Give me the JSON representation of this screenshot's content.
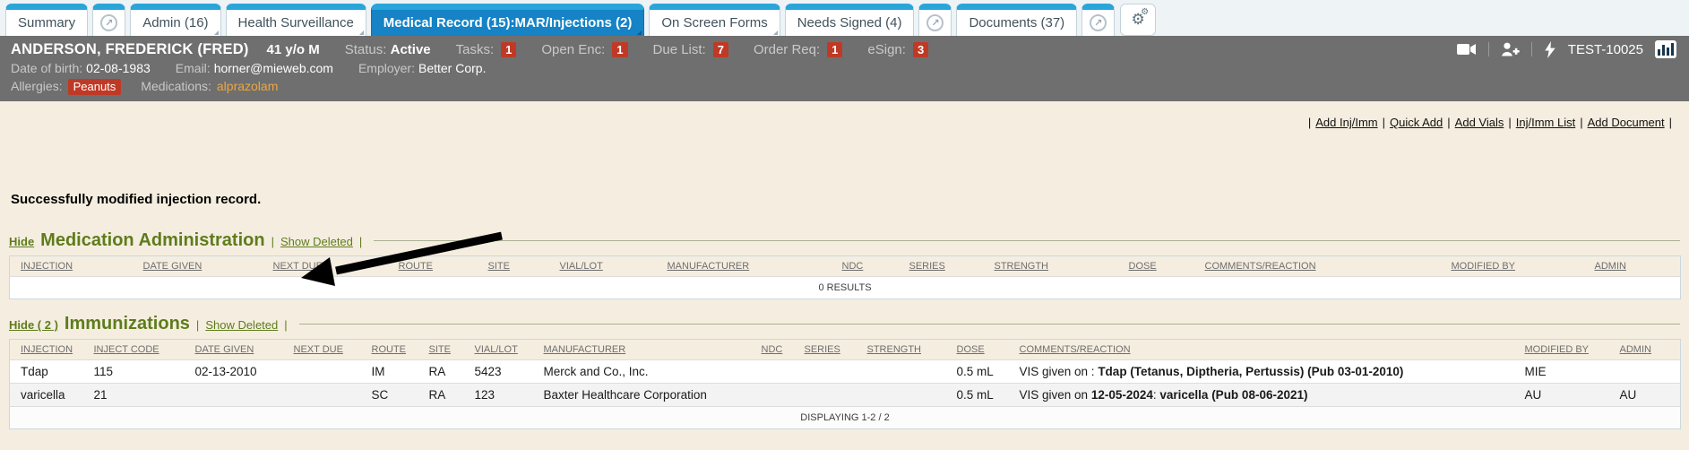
{
  "colors": {
    "accent_blue": "#1583c5",
    "tab_strip_blue": "#2aa5da",
    "alert_red": "#bf3a26",
    "section_green": "#5e7c1c",
    "medications_orange": "#eda63f",
    "banner_gray": "#6f6f6f",
    "content_beige": "#f5eee0"
  },
  "tabs": {
    "popout_glyph": "↗",
    "gear_glyph": "⚙",
    "items": [
      {
        "label": "Summary",
        "active": false,
        "fold": false,
        "popout": true
      },
      {
        "label": "Admin (16)",
        "active": false,
        "fold": true,
        "popout": false
      },
      {
        "label": "Health Surveillance",
        "active": false,
        "fold": true,
        "popout": false
      },
      {
        "label": "Medical Record (15):MAR/Injections (2)",
        "active": true,
        "fold": true,
        "popout": false
      },
      {
        "label": "On Screen Forms",
        "active": false,
        "fold": true,
        "popout": false
      },
      {
        "label": "Needs Signed (4)",
        "active": false,
        "fold": false,
        "popout": true
      },
      {
        "label": "Documents (37)",
        "active": false,
        "fold": false,
        "popout": true
      }
    ]
  },
  "patient": {
    "name": "ANDERSON, FREDERICK (FRED)",
    "age_sex": "41 y/o M",
    "status_label": "Status:",
    "status_value": "Active",
    "counters": [
      {
        "label": "Tasks:",
        "value": "1"
      },
      {
        "label": "Open Enc:",
        "value": "1"
      },
      {
        "label": "Due List:",
        "value": "7"
      },
      {
        "label": "Order Req:",
        "value": "1"
      },
      {
        "label": "eSign:",
        "value": "3"
      }
    ],
    "record_id": "TEST-10025",
    "details": [
      {
        "label": "Date of birth:",
        "value": "02-08-1983"
      },
      {
        "label": "Email:",
        "value": "horner@mieweb.com"
      },
      {
        "label": "Employer:",
        "value": "Better Corp."
      }
    ],
    "allergies_label": "Allergies:",
    "allergies": "Peanuts",
    "medications_label": "Medications:",
    "medications": "alprazolam"
  },
  "actions": {
    "separator": "|",
    "links": [
      "Add Inj/Imm",
      "Quick Add",
      "Add Vials",
      "Inj/Imm List",
      "Add Document"
    ]
  },
  "message": {
    "text": "Successfully modified injection record."
  },
  "med_admin": {
    "hide_label": "Hide",
    "title": "Medication Administration",
    "sep": "|",
    "show_deleted_label": "Show Deleted",
    "columns": [
      "INJECTION",
      "DATE GIVEN",
      "NEXT DUE",
      "ROUTE",
      "SITE",
      "VIAL/LOT",
      "MANUFACTURER",
      "NDC",
      "SERIES",
      "STRENGTH",
      "DOSE",
      "COMMENTS/REACTION",
      "MODIFIED BY",
      "ADMIN"
    ],
    "empty_text": "0 RESULTS"
  },
  "immunizations": {
    "hide_label": "Hide ( 2 )",
    "title": "Immunizations",
    "sep": "|",
    "show_deleted_label": "Show Deleted",
    "columns": [
      "INJECTION",
      "INJECT CODE",
      "DATE GIVEN",
      "NEXT DUE",
      "ROUTE",
      "SITE",
      "VIAL/LOT",
      "MANUFACTURER",
      "NDC",
      "SERIES",
      "STRENGTH",
      "DOSE",
      "COMMENTS/REACTION",
      "MODIFIED BY",
      "ADMIN"
    ],
    "rows": [
      {
        "injection": "Tdap",
        "inject_code": "115",
        "date_given": "02-13-2010",
        "next_due": "",
        "route": "IM",
        "site": "RA",
        "vial_lot": "5423",
        "manufacturer": "Merck and Co., Inc.",
        "ndc": "",
        "series": "",
        "strength": "",
        "dose": "0.5 mL",
        "comments": {
          "pre": "VIS given on : ",
          "b1": "Tdap (Tetanus, Diptheria, Pertussis) (Pub 03-01-2010)",
          "mid": "",
          "b2": ""
        },
        "modified_by": "MIE",
        "admin": ""
      },
      {
        "injection": "varicella",
        "inject_code": "21",
        "date_given": "",
        "next_due": "",
        "route": "SC",
        "site": "RA",
        "vial_lot": "123",
        "manufacturer": "Baxter Healthcare Corporation",
        "ndc": "",
        "series": "",
        "strength": "",
        "dose": "0.5 mL",
        "comments": {
          "pre": "VIS given on ",
          "b1": "12-05-2024",
          "mid": ": ",
          "b2": "varicella (Pub 08-06-2021)"
        },
        "modified_by": "AU",
        "admin": "AU"
      }
    ],
    "footer": "DISPLAYING 1-2 / 2"
  }
}
